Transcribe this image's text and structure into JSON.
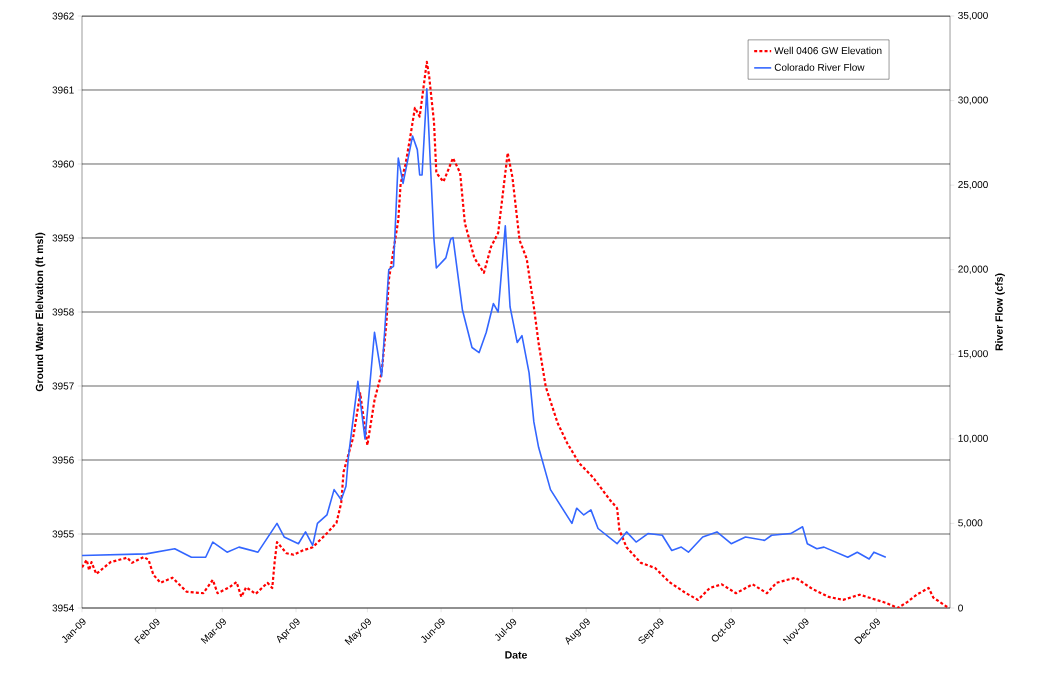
{
  "chart_data": {
    "type": "line",
    "xlabel": "Date",
    "ylabel": "Ground Water Elelvation (ft msl)",
    "y2label": "River Flow (cfs)",
    "xlim": [
      "2009-01-01",
      "2010-01-01"
    ],
    "xticks": [
      {
        "value": "2009-01-01",
        "label": "Jan-09"
      },
      {
        "value": "2009-02-01",
        "label": "Feb-09"
      },
      {
        "value": "2009-03-01",
        "label": "Mar-09"
      },
      {
        "value": "2009-04-01",
        "label": "Apr-09"
      },
      {
        "value": "2009-05-01",
        "label": "May-09"
      },
      {
        "value": "2009-06-01",
        "label": "Jun-09"
      },
      {
        "value": "2009-07-01",
        "label": "Jul-09"
      },
      {
        "value": "2009-08-01",
        "label": "Aug-09"
      },
      {
        "value": "2009-09-01",
        "label": "Sep-09"
      },
      {
        "value": "2009-10-01",
        "label": "Oct-09"
      },
      {
        "value": "2009-11-01",
        "label": "Nov-09"
      },
      {
        "value": "2009-12-01",
        "label": "Dec-09"
      }
    ],
    "ylim": [
      3954,
      3962
    ],
    "yticks": [
      3954,
      3955,
      3956,
      3957,
      3958,
      3959,
      3960,
      3961,
      3962
    ],
    "y2lim": [
      0,
      35000
    ],
    "y2ticks": [
      0,
      {
        "value": 5000,
        "label": "5,000"
      },
      {
        "value": 10000,
        "label": "10,000"
      },
      {
        "value": 15000,
        "label": "15,000"
      },
      {
        "value": 20000,
        "label": "20,000"
      },
      {
        "value": 25000,
        "label": "25,000"
      },
      {
        "value": 30000,
        "label": "30,000"
      },
      {
        "value": 35000,
        "label": "35,000"
      }
    ],
    "grid": "y",
    "legend": "top right",
    "marker": "none",
    "series": [
      {
        "name": "Well 0406 GW Elevation",
        "color": "#ff0000",
        "line_style": "dashed",
        "x": [
          "2009-01-01",
          "2009-01-03",
          "2009-01-04",
          "2009-01-05",
          "2009-01-07",
          "2009-01-13",
          "2009-01-20",
          "2009-01-22",
          "2009-01-27",
          "2009-01-29",
          "2009-01-31",
          "2009-02-03",
          "2009-02-08",
          "2009-02-14",
          "2009-02-21",
          "2009-02-25",
          "2009-02-27",
          "2009-03-04",
          "2009-03-07",
          "2009-03-09",
          "2009-03-11",
          "2009-03-15",
          "2009-03-20",
          "2009-03-22",
          "2009-03-23",
          "2009-03-24",
          "2009-03-28",
          "2009-03-31",
          "2009-04-04",
          "2009-04-08",
          "2009-04-14",
          "2009-04-18",
          "2009-04-20",
          "2009-04-21",
          "2009-04-25",
          "2009-04-28",
          "2009-05-01",
          "2009-05-04",
          "2009-05-07",
          "2009-05-09",
          "2009-05-10",
          "2009-05-12",
          "2009-05-14",
          "2009-05-15",
          "2009-05-17",
          "2009-05-19",
          "2009-05-21",
          "2009-05-23",
          "2009-05-26",
          "2009-05-27",
          "2009-05-29",
          "2009-05-30",
          "2009-06-02",
          "2009-06-06",
          "2009-06-09",
          "2009-06-11",
          "2009-06-15",
          "2009-06-19",
          "2009-06-22",
          "2009-06-25",
          "2009-06-29",
          "2009-07-01",
          "2009-07-04",
          "2009-07-07",
          "2009-07-10",
          "2009-07-12",
          "2009-07-15",
          "2009-07-20",
          "2009-07-24",
          "2009-07-29",
          "2009-08-04",
          "2009-08-11",
          "2009-08-14",
          "2009-08-15",
          "2009-08-18",
          "2009-08-24",
          "2009-08-30",
          "2009-09-05",
          "2009-09-12",
          "2009-09-17",
          "2009-09-22",
          "2009-09-27",
          "2009-10-03",
          "2009-10-10",
          "2009-10-16",
          "2009-10-20",
          "2009-10-28",
          "2009-11-04",
          "2009-11-11",
          "2009-11-17",
          "2009-11-24",
          "2009-12-01",
          "2009-12-05",
          "2009-12-10",
          "2009-12-14",
          "2009-12-18",
          "2009-12-23",
          "2009-12-25",
          "2009-12-31"
        ],
        "values": [
          3954.55,
          3954.65,
          3954.51,
          3954.62,
          3954.46,
          3954.62,
          3954.68,
          3954.61,
          3954.69,
          3954.65,
          3954.45,
          3954.34,
          3954.41,
          3954.22,
          3954.2,
          3954.38,
          3954.2,
          3954.28,
          3954.35,
          3954.15,
          3954.28,
          3954.19,
          3954.34,
          3954.27,
          3954.62,
          3954.89,
          3954.74,
          3954.72,
          3954.78,
          3954.82,
          3955.01,
          3955.15,
          3955.42,
          3955.84,
          3956.3,
          3956.9,
          3956.2,
          3956.81,
          3957.18,
          3957.85,
          3958.43,
          3958.84,
          3959.24,
          3959.74,
          3959.99,
          3960.36,
          3960.76,
          3960.64,
          3961.38,
          3961.18,
          3960.57,
          3959.88,
          3959.76,
          3960.08,
          3959.88,
          3959.2,
          3958.73,
          3958.53,
          3958.88,
          3959.07,
          3960.15,
          3959.82,
          3958.97,
          3958.72,
          3958.07,
          3957.58,
          3956.99,
          3956.5,
          3956.23,
          3955.96,
          3955.76,
          3955.46,
          3955.35,
          3955.05,
          3954.82,
          3954.61,
          3954.54,
          3954.35,
          3954.2,
          3954.11,
          3954.27,
          3954.32,
          3954.2,
          3954.32,
          3954.2,
          3954.34,
          3954.41,
          3954.26,
          3954.15,
          3954.11,
          3954.18,
          3954.11,
          3954.07,
          3954.0,
          3954.08,
          3954.18,
          3954.27,
          3954.14,
          3954.01
        ]
      },
      {
        "name": "Colorado River Flow",
        "color": "#3366ff",
        "line_style": "solid",
        "axis": "y2",
        "x": [
          "2009-01-01",
          "2009-01-28",
          "2009-02-09",
          "2009-02-16",
          "2009-02-22",
          "2009-02-25",
          "2009-03-03",
          "2009-03-08",
          "2009-03-16",
          "2009-03-24",
          "2009-03-27",
          "2009-04-02",
          "2009-04-05",
          "2009-04-08",
          "2009-04-10",
          "2009-04-14",
          "2009-04-17",
          "2009-04-20",
          "2009-04-22",
          "2009-04-23",
          "2009-04-27",
          "2009-04-30",
          "2009-05-04",
          "2009-05-07",
          "2009-05-10",
          "2009-05-12",
          "2009-05-14",
          "2009-05-16",
          "2009-05-20",
          "2009-05-22",
          "2009-05-23",
          "2009-05-24",
          "2009-05-26",
          "2009-05-29",
          "2009-05-30",
          "2009-06-03",
          "2009-06-05",
          "2009-06-06",
          "2009-06-10",
          "2009-06-14",
          "2009-06-17",
          "2009-06-20",
          "2009-06-23",
          "2009-06-25",
          "2009-06-28",
          "2009-06-30",
          "2009-07-03",
          "2009-07-05",
          "2009-07-08",
          "2009-07-10",
          "2009-07-12",
          "2009-07-17",
          "2009-07-26",
          "2009-07-28",
          "2009-07-31",
          "2009-08-03",
          "2009-08-06",
          "2009-08-14",
          "2009-08-18",
          "2009-08-22",
          "2009-08-27",
          "2009-09-02",
          "2009-09-06",
          "2009-09-10",
          "2009-09-13",
          "2009-09-19",
          "2009-09-25",
          "2009-10-01",
          "2009-10-07",
          "2009-10-15",
          "2009-10-18",
          "2009-10-26",
          "2009-10-31",
          "2009-11-02",
          "2009-11-06",
          "2009-11-09",
          "2009-11-19",
          "2009-11-23",
          "2009-11-28",
          "2009-11-30",
          "2009-12-05"
        ],
        "values": [
          3100,
          3200,
          3500,
          3000,
          3000,
          3900,
          3300,
          3600,
          3300,
          5000,
          4200,
          3800,
          4500,
          3700,
          5000,
          5500,
          7000,
          6400,
          7200,
          8900,
          13400,
          10000,
          16300,
          13700,
          20000,
          20200,
          26600,
          25100,
          27900,
          27100,
          25600,
          25600,
          30700,
          21800,
          20100,
          20700,
          21800,
          21900,
          17600,
          15400,
          15100,
          16300,
          18000,
          17500,
          22600,
          17800,
          15700,
          16100,
          13900,
          11000,
          9500,
          7000,
          5000,
          5900,
          5500,
          5800,
          4700,
          3800,
          4500,
          3900,
          4400,
          4300,
          3400,
          3600,
          3300,
          4200,
          4500,
          3800,
          4200,
          4000,
          4300,
          4400,
          4800,
          3800,
          3500,
          3600,
          3000,
          3300,
          2900,
          3300,
          3000
        ]
      }
    ]
  }
}
